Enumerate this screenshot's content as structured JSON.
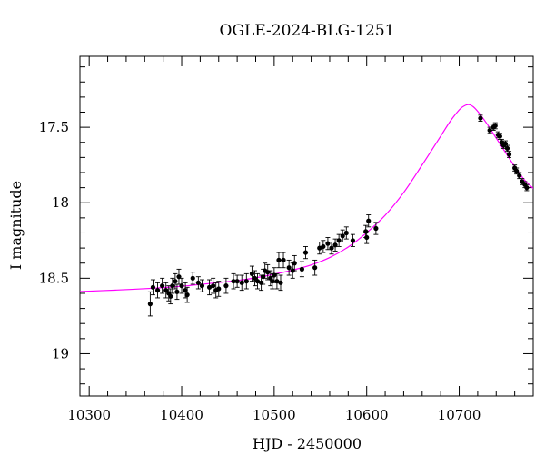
{
  "chart_data": {
    "type": "scatter",
    "title": "OGLE-2024-BLG-1251",
    "xlabel": "HJD - 2450000",
    "ylabel": "I magnitude",
    "xlim": [
      10290,
      10780
    ],
    "ylim": [
      19.28,
      17.03
    ],
    "y_inverted": true,
    "x_ticks": [
      10300,
      10400,
      10500,
      10600,
      10700
    ],
    "x_tick_labels": [
      "10300",
      "10400",
      "10500",
      "10600",
      "10700"
    ],
    "x_minor_step": 20,
    "y_ticks": [
      17.5,
      18,
      18.5,
      19
    ],
    "y_tick_labels": [
      "17.5",
      "18",
      "18.5",
      "19"
    ],
    "y_minor_step": 0.1,
    "grid": false,
    "colors": {
      "points": "#000000",
      "model": "#ff00ff",
      "frame": "#000000"
    },
    "series": [
      {
        "kind": "points_with_errorbars",
        "points": [
          [
            10366,
            18.67,
            0.08
          ],
          [
            10369,
            18.56,
            0.05
          ],
          [
            10374,
            18.58,
            0.05
          ],
          [
            10379,
            18.55,
            0.05
          ],
          [
            10383,
            18.58,
            0.05
          ],
          [
            10386,
            18.6,
            0.05
          ],
          [
            10388,
            18.62,
            0.05
          ],
          [
            10390,
            18.55,
            0.05
          ],
          [
            10393,
            18.52,
            0.05
          ],
          [
            10395,
            18.59,
            0.05
          ],
          [
            10397,
            18.49,
            0.05
          ],
          [
            10400,
            18.55,
            0.05
          ],
          [
            10404,
            18.58,
            0.05
          ],
          [
            10406,
            18.61,
            0.05
          ],
          [
            10412,
            18.5,
            0.04
          ],
          [
            10418,
            18.53,
            0.04
          ],
          [
            10422,
            18.55,
            0.04
          ],
          [
            10430,
            18.56,
            0.05
          ],
          [
            10434,
            18.55,
            0.05
          ],
          [
            10437,
            18.58,
            0.05
          ],
          [
            10440,
            18.57,
            0.05
          ],
          [
            10448,
            18.55,
            0.05
          ],
          [
            10456,
            18.52,
            0.05
          ],
          [
            10460,
            18.52,
            0.04
          ],
          [
            10465,
            18.53,
            0.05
          ],
          [
            10470,
            18.52,
            0.05
          ],
          [
            10476,
            18.47,
            0.05
          ],
          [
            10479,
            18.5,
            0.05
          ],
          [
            10482,
            18.52,
            0.05
          ],
          [
            10486,
            18.53,
            0.05
          ],
          [
            10488,
            18.49,
            0.05
          ],
          [
            10490,
            18.45,
            0.05
          ],
          [
            10493,
            18.46,
            0.05
          ],
          [
            10496,
            18.5,
            0.05
          ],
          [
            10498,
            18.52,
            0.05
          ],
          [
            10500,
            18.48,
            0.05
          ],
          [
            10503,
            18.52,
            0.05
          ],
          [
            10505,
            18.38,
            0.05
          ],
          [
            10507,
            18.53,
            0.05
          ],
          [
            10510,
            18.38,
            0.05
          ],
          [
            10516,
            18.43,
            0.05
          ],
          [
            10520,
            18.45,
            0.05
          ],
          [
            10522,
            18.4,
            0.05
          ],
          [
            10530,
            18.44,
            0.05
          ],
          [
            10534,
            18.33,
            0.04
          ],
          [
            10544,
            18.43,
            0.05
          ],
          [
            10549,
            18.3,
            0.04
          ],
          [
            10553,
            18.29,
            0.04
          ],
          [
            10558,
            18.27,
            0.04
          ],
          [
            10562,
            18.3,
            0.04
          ],
          [
            10566,
            18.28,
            0.04
          ],
          [
            10570,
            18.25,
            0.04
          ],
          [
            10574,
            18.22,
            0.04
          ],
          [
            10578,
            18.2,
            0.04
          ],
          [
            10585,
            18.25,
            0.04
          ],
          [
            10599,
            18.19,
            0.04
          ],
          [
            10600,
            18.23,
            0.04
          ],
          [
            10602,
            18.12,
            0.04
          ],
          [
            10610,
            18.17,
            0.04
          ],
          [
            10723,
            17.44,
            0.02
          ],
          [
            10733,
            17.52,
            0.02
          ],
          [
            10737,
            17.5,
            0.02
          ],
          [
            10739,
            17.49,
            0.02
          ],
          [
            10742,
            17.55,
            0.02
          ],
          [
            10744,
            17.56,
            0.02
          ],
          [
            10746,
            17.6,
            0.02
          ],
          [
            10748,
            17.62,
            0.02
          ],
          [
            10750,
            17.61,
            0.02
          ],
          [
            10752,
            17.64,
            0.02
          ],
          [
            10754,
            17.68,
            0.02
          ],
          [
            10760,
            17.77,
            0.02
          ],
          [
            10762,
            17.79,
            0.02
          ],
          [
            10765,
            17.82,
            0.02
          ],
          [
            10768,
            17.86,
            0.02
          ],
          [
            10771,
            17.88,
            0.02
          ],
          [
            10773,
            17.9,
            0.02
          ]
        ]
      },
      {
        "kind": "model_curve",
        "points": [
          [
            10290,
            18.588
          ],
          [
            10330,
            18.578
          ],
          [
            10370,
            18.566
          ],
          [
            10400,
            18.553
          ],
          [
            10430,
            18.535
          ],
          [
            10460,
            18.515
          ],
          [
            10480,
            18.497
          ],
          [
            10500,
            18.473
          ],
          [
            10520,
            18.446
          ],
          [
            10540,
            18.412
          ],
          [
            10560,
            18.363
          ],
          [
            10580,
            18.293
          ],
          [
            10600,
            18.198
          ],
          [
            10620,
            18.083
          ],
          [
            10640,
            17.932
          ],
          [
            10660,
            17.749
          ],
          [
            10680,
            17.559
          ],
          [
            10690,
            17.463
          ],
          [
            10700,
            17.385
          ],
          [
            10705,
            17.36
          ],
          [
            10710,
            17.35
          ],
          [
            10715,
            17.363
          ],
          [
            10720,
            17.395
          ],
          [
            10730,
            17.477
          ],
          [
            10740,
            17.572
          ],
          [
            10750,
            17.667
          ],
          [
            10760,
            17.76
          ],
          [
            10770,
            17.845
          ],
          [
            10780,
            17.905
          ]
        ]
      }
    ]
  }
}
